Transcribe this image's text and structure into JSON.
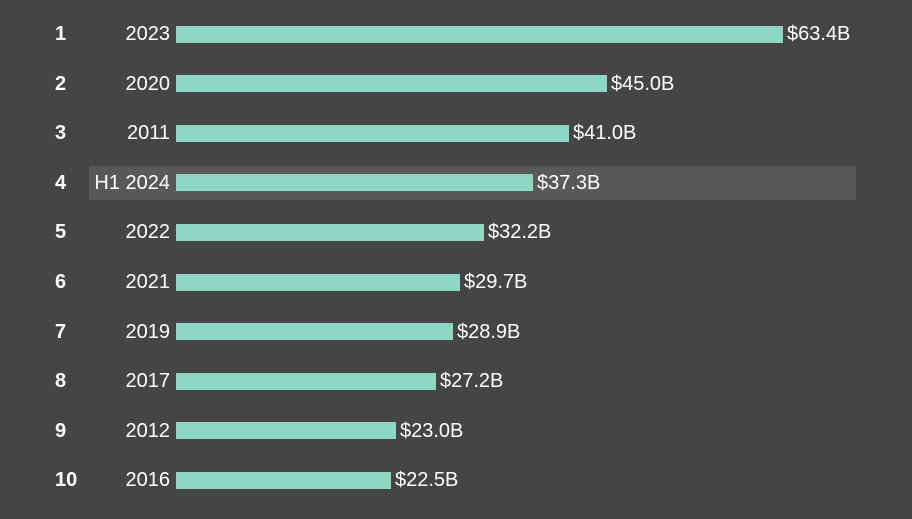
{
  "chart_data": {
    "type": "bar",
    "orientation": "horizontal",
    "ranks": [
      "1",
      "2",
      "3",
      "4",
      "5",
      "6",
      "7",
      "8",
      "9",
      "10"
    ],
    "categories": [
      "2023",
      "2020",
      "2011",
      "H1 2024",
      "2022",
      "2021",
      "2019",
      "2017",
      "2012",
      "2016"
    ],
    "values": [
      63.4,
      45.0,
      41.0,
      37.3,
      32.2,
      29.7,
      28.9,
      27.2,
      23.0,
      22.5
    ],
    "value_labels": [
      "$63.4B",
      "$45.0B",
      "$41.0B",
      "$37.3B",
      "$32.2B",
      "$29.7B",
      "$28.9B",
      "$27.2B",
      "$23.0B",
      "$22.5B"
    ],
    "highlighted_category": "H1 2024",
    "xlim": [
      0,
      63.4
    ],
    "grid": false,
    "colors": {
      "background": "#454545",
      "bar": "#8dd6c4",
      "highlight": "#595959",
      "text": "#ffffff"
    }
  }
}
